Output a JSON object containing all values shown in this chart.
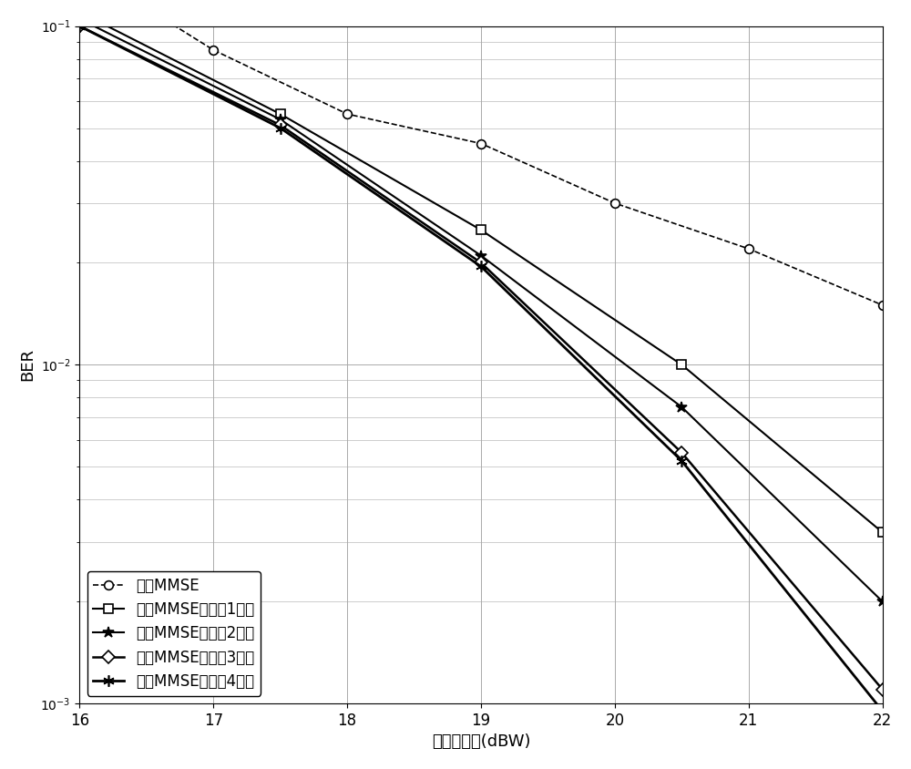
{
  "title": "",
  "xlabel": "发送光功率(dBW)",
  "ylabel": "BER",
  "xlim": [
    16,
    22
  ],
  "ylim_log": [
    -3,
    -1
  ],
  "x_ticks": [
    16,
    17,
    18,
    19,
    20,
    21,
    22
  ],
  "series": [
    {
      "label": "传统MMSE",
      "x": [
        16,
        17,
        18,
        19,
        20,
        21,
        22
      ],
      "y": [
        0.15,
        0.085,
        0.055,
        0.045,
        0.03,
        0.022,
        0.015
      ],
      "color": "#000000",
      "linestyle": "dashed",
      "marker": "o",
      "linewidth": 1.2,
      "markersize": 7
    },
    {
      "label": "改进MMSE（迭代1次）",
      "x": [
        16,
        17.5,
        19,
        20.5,
        22
      ],
      "y": [
        0.11,
        0.055,
        0.025,
        0.01,
        0.0032
      ],
      "color": "#000000",
      "linestyle": "solid",
      "marker": "s",
      "linewidth": 1.5,
      "markersize": 7
    },
    {
      "label": "改进MMSE（迭代2次）",
      "x": [
        16,
        17.5,
        19,
        20.5,
        22
      ],
      "y": [
        0.105,
        0.053,
        0.021,
        0.0075,
        0.002
      ],
      "color": "#000000",
      "linestyle": "solid",
      "marker": "*",
      "linewidth": 1.5,
      "markersize": 9
    },
    {
      "label": "改进MMSE（迭代3次）",
      "x": [
        16,
        17.5,
        19,
        20.5,
        22
      ],
      "y": [
        0.1,
        0.051,
        0.02,
        0.0055,
        0.0011
      ],
      "color": "#000000",
      "linestyle": "solid",
      "marker": "D",
      "linewidth": 1.8,
      "markersize": 7
    },
    {
      "label": "改进MMSE（迭代4次）",
      "x": [
        16,
        17.5,
        19,
        20.5,
        22
      ],
      "y": [
        0.1,
        0.05,
        0.0195,
        0.0052,
        0.00095
      ],
      "color": "#000000",
      "linestyle": "solid",
      "marker": "☆",
      "linewidth": 2.0,
      "markersize": 9
    }
  ],
  "background_color": "#ffffff",
  "grid_color": "#aaaaaa",
  "legend_loc": "lower left",
  "legend_fontsize": 12,
  "axis_fontsize": 13,
  "tick_fontsize": 12
}
